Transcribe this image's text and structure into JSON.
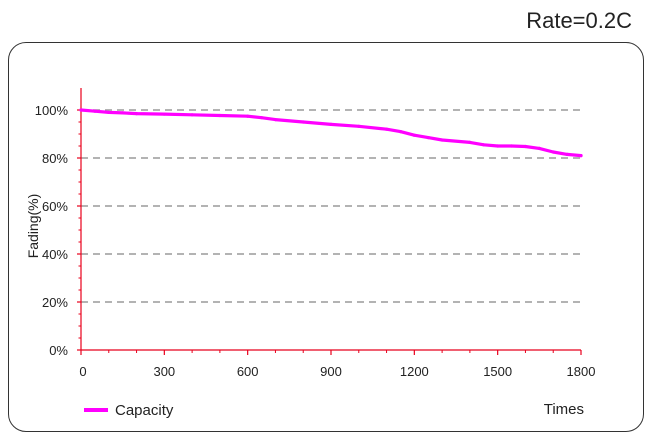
{
  "header": {
    "rate_label": "Rate=0.2C"
  },
  "colors": {
    "series": "#ff00ff",
    "axis": "#e8001c",
    "grid": "#9a9a9a",
    "text": "#222222"
  },
  "chart_data": {
    "type": "line",
    "title": "",
    "xlabel": "Times",
    "ylabel": "Fading(%)",
    "xlim": [
      0,
      1800
    ],
    "ylim": [
      0,
      100
    ],
    "x_ticks": [
      0,
      300,
      600,
      900,
      1200,
      1500,
      1800
    ],
    "x_tick_labels": [
      "0",
      "300",
      "600",
      "900",
      "1200",
      "1500",
      "1800"
    ],
    "y_ticks": [
      0,
      20,
      40,
      60,
      80,
      100
    ],
    "y_tick_labels": [
      "0%",
      "20%",
      "40%",
      "60%",
      "80%",
      "100%"
    ],
    "grid": "horizontal dashed",
    "legend_position": "bottom-left",
    "series": [
      {
        "name": "Capacity",
        "color": "#ff00ff",
        "x": [
          0,
          50,
          100,
          150,
          200,
          300,
          400,
          500,
          600,
          650,
          700,
          800,
          900,
          1000,
          1100,
          1150,
          1200,
          1250,
          1300,
          1400,
          1450,
          1500,
          1550,
          1600,
          1650,
          1700,
          1750,
          1800
        ],
        "y": [
          100,
          99.5,
          99,
          98.8,
          98.5,
          98.3,
          98,
          97.7,
          97.4,
          96.8,
          96,
          95,
          94,
          93.2,
          92,
          91,
          89.5,
          88.5,
          87.5,
          86.5,
          85.5,
          85,
          85,
          84.8,
          84,
          82.5,
          81.5,
          81
        ]
      }
    ]
  }
}
